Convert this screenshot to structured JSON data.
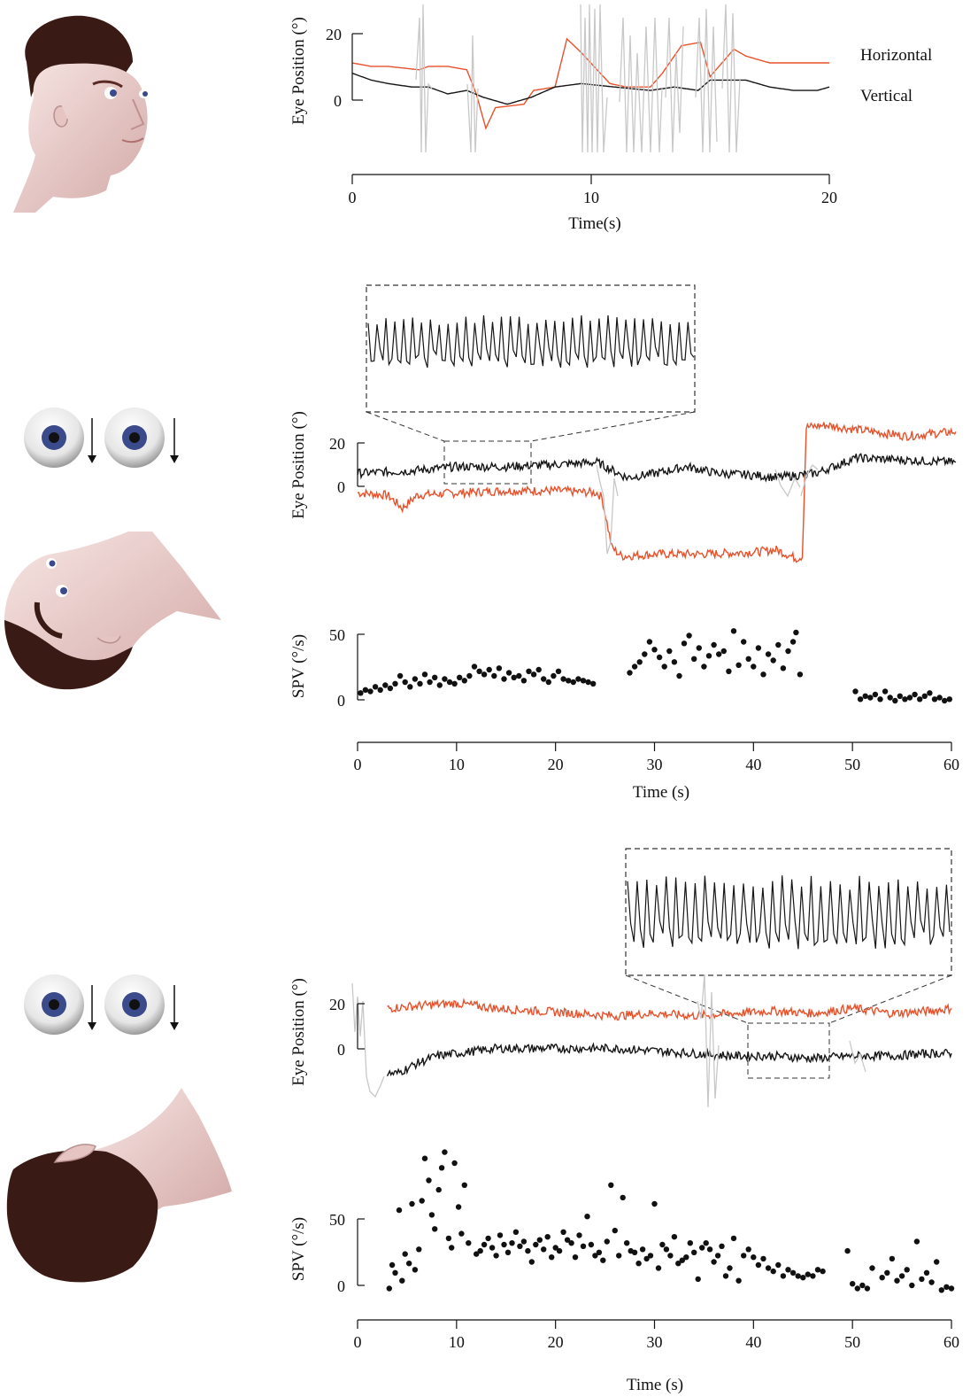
{
  "colors": {
    "horizontal": "#e8502a",
    "vertical": "#151515",
    "artifact": "#c8c8c8",
    "skin": "#f0d8d6",
    "hair": "#3a1a14",
    "iris": "#3a4a8a"
  },
  "illustrations": [
    "head-upright-icon",
    "eyes-down-arrows-icon",
    "head-supine-icon",
    "eyes-down-arrows-icon",
    "head-prone-icon"
  ],
  "chart_data": [
    {
      "id": "upright-eye-position",
      "type": "line",
      "ylabel": "Eye Position (°)",
      "xlabel": "Time(s)",
      "xticks": [
        "0",
        "10",
        "20"
      ],
      "yticks": [
        "0",
        "20"
      ],
      "xlim": [
        0,
        20
      ],
      "ylim": [
        -15,
        28
      ],
      "legend": [
        "Horizontal",
        "Vertical"
      ],
      "legend_position": "right",
      "series": [
        {
          "name": "Horizontal",
          "color": "horizontal",
          "x": [
            0,
            0.8,
            1.5,
            2.8,
            3.2,
            4.0,
            4.8,
            5.2,
            5.6,
            6.0,
            7.2,
            7.6,
            8.5,
            9.0,
            9.6,
            10.8,
            11.5,
            12.5,
            13.0,
            13.8,
            14.6,
            15.0,
            16.0,
            16.5,
            17.5,
            18.5,
            19.5,
            20
          ],
          "y": [
            11,
            10,
            10,
            9,
            10,
            10,
            9,
            2,
            -8,
            -2,
            -1,
            3,
            4,
            18,
            14,
            5,
            4,
            4,
            8,
            16,
            17,
            7,
            15,
            13,
            11,
            11,
            11,
            11
          ]
        },
        {
          "name": "Vertical",
          "color": "vertical",
          "x": [
            0,
            0.8,
            1.5,
            2.5,
            3.2,
            4.0,
            4.8,
            5.5,
            6.5,
            7.5,
            8.5,
            9.6,
            11.0,
            12.5,
            13.5,
            14.5,
            15.0,
            16.5,
            17.5,
            18.5,
            19.5,
            20
          ],
          "y": [
            8,
            6,
            5,
            4,
            4,
            2,
            3,
            1,
            -1,
            1,
            4,
            5,
            4,
            3,
            4,
            3,
            6,
            6,
            4,
            3,
            3,
            4
          ]
        }
      ]
    },
    {
      "id": "supine-eye-position",
      "type": "line",
      "ylabel": "Eye Position (°)",
      "yticks": [
        "0",
        "20"
      ],
      "xlim": [
        0,
        60
      ],
      "ylim": [
        -45,
        32
      ],
      "series": [
        {
          "name": "Horizontal",
          "color": "horizontal",
          "x": [
            0,
            3,
            4.5,
            6,
            10,
            15,
            20,
            24,
            24.5,
            25.5,
            26.5,
            30,
            35,
            40,
            42,
            44,
            44.6,
            45,
            47,
            50,
            55,
            60
          ],
          "y": [
            -3,
            -4,
            -10,
            -4,
            -3,
            -2,
            -2,
            -3,
            -5,
            -28,
            -32,
            -31,
            -31,
            -30,
            -29,
            -33,
            -32,
            27,
            28,
            26,
            23,
            25
          ]
        },
        {
          "name": "Vertical",
          "color": "vertical",
          "x": [
            0,
            5,
            10,
            15,
            20,
            24,
            27,
            30,
            33,
            36,
            40,
            42,
            44,
            46,
            50,
            55,
            60
          ],
          "y": [
            6,
            7,
            9,
            9,
            10,
            11,
            4,
            6,
            9,
            6,
            5,
            4,
            5,
            6,
            13,
            12,
            11
          ]
        }
      ]
    },
    {
      "id": "supine-spv",
      "type": "scatter",
      "ylabel": "SPV (°/s)",
      "xlabel": "Time (s)",
      "xticks": [
        "0",
        "10",
        "20",
        "30",
        "40",
        "50",
        "60"
      ],
      "yticks": [
        "0",
        "50"
      ],
      "xlim": [
        0,
        60
      ],
      "ylim": [
        -20,
        60
      ],
      "points": [
        [
          0.3,
          13
        ],
        [
          0.8,
          15
        ],
        [
          1.3,
          14
        ],
        [
          1.8,
          17
        ],
        [
          2.3,
          15
        ],
        [
          2.8,
          18
        ],
        [
          3.3,
          16
        ],
        [
          3.8,
          19
        ],
        [
          4.3,
          24
        ],
        [
          4.8,
          20
        ],
        [
          5.3,
          17
        ],
        [
          5.8,
          22
        ],
        [
          6.3,
          19
        ],
        [
          6.8,
          25
        ],
        [
          7.3,
          20
        ],
        [
          7.8,
          23
        ],
        [
          8.3,
          18
        ],
        [
          8.8,
          22
        ],
        [
          9.3,
          20
        ],
        [
          9.8,
          19
        ],
        [
          10.3,
          23
        ],
        [
          10.8,
          21
        ],
        [
          11.3,
          24
        ],
        [
          11.8,
          30
        ],
        [
          12.3,
          27
        ],
        [
          12.8,
          25
        ],
        [
          13.3,
          28
        ],
        [
          13.8,
          24
        ],
        [
          14.3,
          29
        ],
        [
          14.8,
          22
        ],
        [
          15.3,
          26
        ],
        [
          15.8,
          23
        ],
        [
          16.3,
          24
        ],
        [
          16.8,
          21
        ],
        [
          17.3,
          27
        ],
        [
          17.8,
          25
        ],
        [
          18.3,
          28
        ],
        [
          18.8,
          22
        ],
        [
          19.3,
          20
        ],
        [
          19.8,
          24
        ],
        [
          20.3,
          27
        ],
        [
          20.8,
          22
        ],
        [
          21.3,
          21
        ],
        [
          21.8,
          20
        ],
        [
          22.3,
          22
        ],
        [
          22.8,
          21
        ],
        [
          23.3,
          20
        ],
        [
          23.8,
          19
        ],
        [
          27.5,
          26
        ],
        [
          28.0,
          30
        ],
        [
          28.5,
          33
        ],
        [
          29.0,
          38
        ],
        [
          29.5,
          46
        ],
        [
          30.0,
          41
        ],
        [
          30.5,
          36
        ],
        [
          31.0,
          30
        ],
        [
          31.5,
          40
        ],
        [
          32.0,
          33
        ],
        [
          32.5,
          24
        ],
        [
          33.0,
          45
        ],
        [
          33.5,
          50
        ],
        [
          34.0,
          35
        ],
        [
          34.5,
          42
        ],
        [
          35.0,
          30
        ],
        [
          35.5,
          37
        ],
        [
          36.0,
          44
        ],
        [
          36.5,
          38
        ],
        [
          37.0,
          40
        ],
        [
          37.5,
          27
        ],
        [
          38.0,
          53
        ],
        [
          38.5,
          31
        ],
        [
          39.0,
          46
        ],
        [
          39.5,
          35
        ],
        [
          40.0,
          30
        ],
        [
          40.5,
          42
        ],
        [
          41.0,
          25
        ],
        [
          41.5,
          38
        ],
        [
          42.0,
          34
        ],
        [
          42.5,
          44
        ],
        [
          43.0,
          29
        ],
        [
          43.5,
          40
        ],
        [
          44.0,
          46
        ],
        [
          44.3,
          52
        ],
        [
          44.7,
          25
        ],
        [
          50.3,
          14
        ],
        [
          50.8,
          9
        ],
        [
          51.3,
          11
        ],
        [
          51.8,
          10
        ],
        [
          52.3,
          12
        ],
        [
          52.8,
          9
        ],
        [
          53.3,
          14
        ],
        [
          53.8,
          10
        ],
        [
          54.3,
          8
        ],
        [
          54.8,
          11
        ],
        [
          55.3,
          9
        ],
        [
          55.8,
          10
        ],
        [
          56.3,
          12
        ],
        [
          56.8,
          9
        ],
        [
          57.3,
          11
        ],
        [
          57.8,
          13
        ],
        [
          58.3,
          9
        ],
        [
          58.8,
          10
        ],
        [
          59.3,
          8
        ],
        [
          59.8,
          9
        ]
      ]
    },
    {
      "id": "prone-eye-position",
      "type": "line",
      "ylabel": "Eye Position (°)",
      "yticks": [
        "0",
        "20"
      ],
      "xlim": [
        0,
        60
      ],
      "ylim": [
        -18,
        28
      ],
      "series": [
        {
          "name": "Horizontal",
          "color": "horizontal",
          "x": [
            3,
            6,
            10,
            14,
            18,
            22,
            26,
            30,
            34,
            38,
            42,
            46,
            50,
            54,
            58,
            60
          ],
          "y": [
            18,
            19,
            20,
            18,
            17,
            16,
            15,
            16,
            15,
            16,
            17,
            16,
            18,
            16,
            17,
            18
          ]
        },
        {
          "name": "Vertical",
          "color": "vertical",
          "x": [
            3,
            4,
            5,
            6,
            8,
            10,
            14,
            18,
            22,
            26,
            30,
            34,
            38,
            42,
            46,
            50,
            54,
            58,
            60
          ],
          "y": [
            -8,
            -8,
            -6,
            -4,
            -1,
            0,
            2,
            2,
            2,
            2,
            1,
            0,
            -1,
            -1,
            -2,
            -1,
            -1,
            0,
            0
          ]
        }
      ]
    },
    {
      "id": "prone-spv",
      "type": "scatter",
      "ylabel": "SPV (°/s)",
      "xlabel": "Time (s)",
      "xticks": [
        "0",
        "10",
        "20",
        "30",
        "40",
        "50",
        "60"
      ],
      "yticks": [
        "0",
        "50"
      ],
      "xlim": [
        0,
        60
      ],
      "ylim": [
        -25,
        105
      ],
      "points": [
        [
          3.2,
          12
        ],
        [
          3.5,
          27
        ],
        [
          3.8,
          22
        ],
        [
          4.2,
          62
        ],
        [
          4.5,
          17
        ],
        [
          4.8,
          34
        ],
        [
          5.2,
          28
        ],
        [
          5.5,
          66
        ],
        [
          5.8,
          24
        ],
        [
          6.2,
          37
        ],
        [
          6.5,
          68
        ],
        [
          6.8,
          95
        ],
        [
          7.2,
          81
        ],
        [
          7.5,
          59
        ],
        [
          7.8,
          50
        ],
        [
          8.2,
          75
        ],
        [
          8.5,
          89
        ],
        [
          8.8,
          99
        ],
        [
          9.2,
          44
        ],
        [
          9.5,
          38
        ],
        [
          9.8,
          92
        ],
        [
          10.2,
          64
        ],
        [
          10.5,
          47
        ],
        [
          10.8,
          78
        ],
        [
          11.2,
          41
        ],
        [
          12.0,
          34
        ],
        [
          12.4,
          36
        ],
        [
          12.8,
          40
        ],
        [
          13.2,
          44
        ],
        [
          13.6,
          38
        ],
        [
          14.0,
          33
        ],
        [
          14.4,
          46
        ],
        [
          14.8,
          40
        ],
        [
          15.2,
          35
        ],
        [
          15.6,
          41
        ],
        [
          16.0,
          48
        ],
        [
          16.4,
          39
        ],
        [
          16.8,
          42
        ],
        [
          17.2,
          36
        ],
        [
          17.6,
          29
        ],
        [
          18.0,
          40
        ],
        [
          18.4,
          43
        ],
        [
          18.8,
          37
        ],
        [
          19.2,
          45
        ],
        [
          19.6,
          32
        ],
        [
          20.0,
          38
        ],
        [
          20.4,
          36
        ],
        [
          20.8,
          48
        ],
        [
          21.2,
          43
        ],
        [
          21.6,
          41
        ],
        [
          22.0,
          32
        ],
        [
          22.4,
          46
        ],
        [
          22.8,
          39
        ],
        [
          23.2,
          58
        ],
        [
          23.6,
          40
        ],
        [
          24.0,
          33
        ],
        [
          24.4,
          35
        ],
        [
          24.8,
          30
        ],
        [
          25.2,
          42
        ],
        [
          25.6,
          78
        ],
        [
          26.0,
          49
        ],
        [
          26.4,
          33
        ],
        [
          26.8,
          70
        ],
        [
          27.2,
          41
        ],
        [
          27.6,
          36
        ],
        [
          28.0,
          35
        ],
        [
          28.4,
          28
        ],
        [
          28.8,
          37
        ],
        [
          29.2,
          31
        ],
        [
          29.6,
          33
        ],
        [
          30.0,
          66
        ],
        [
          30.4,
          25
        ],
        [
          30.8,
          40
        ],
        [
          31.2,
          37
        ],
        [
          31.6,
          33
        ],
        [
          32.0,
          45
        ],
        [
          32.4,
          28
        ],
        [
          32.8,
          30
        ],
        [
          33.2,
          32
        ],
        [
          33.6,
          41
        ],
        [
          34.0,
          35
        ],
        [
          34.4,
          18
        ],
        [
          34.8,
          38
        ],
        [
          35.2,
          41
        ],
        [
          35.6,
          37
        ],
        [
          36.0,
          29
        ],
        [
          36.4,
          33
        ],
        [
          36.8,
          39
        ],
        [
          37.2,
          20
        ],
        [
          37.6,
          25
        ],
        [
          38.0,
          44
        ],
        [
          38.5,
          17
        ],
        [
          39.0,
          33
        ],
        [
          39.5,
          37
        ],
        [
          40.0,
          32
        ],
        [
          40.5,
          27
        ],
        [
          41.0,
          31
        ],
        [
          41.5,
          25
        ],
        [
          42.0,
          23
        ],
        [
          42.5,
          27
        ],
        [
          43.0,
          20
        ],
        [
          43.5,
          24
        ],
        [
          44.0,
          22
        ],
        [
          44.5,
          20
        ],
        [
          45.0,
          19
        ],
        [
          45.5,
          21
        ],
        [
          46.0,
          20
        ],
        [
          46.5,
          24
        ],
        [
          47.0,
          23
        ],
        [
          49.5,
          36
        ],
        [
          50.0,
          15
        ],
        [
          50.5,
          12
        ],
        [
          51.0,
          14
        ],
        [
          51.5,
          12
        ],
        [
          53.0,
          19
        ],
        [
          53.5,
          22
        ],
        [
          54.0,
          31
        ],
        [
          54.5,
          17
        ],
        [
          55.0,
          20
        ],
        [
          55.5,
          24
        ],
        [
          56.0,
          14
        ],
        [
          56.5,
          42
        ],
        [
          57.0,
          18
        ],
        [
          57.5,
          22
        ],
        [
          58.0,
          16
        ],
        [
          58.5,
          29
        ],
        [
          59.0,
          11
        ],
        [
          59.5,
          13
        ],
        [
          60.0,
          12
        ],
        [
          52.0,
          25
        ]
      ]
    }
  ]
}
